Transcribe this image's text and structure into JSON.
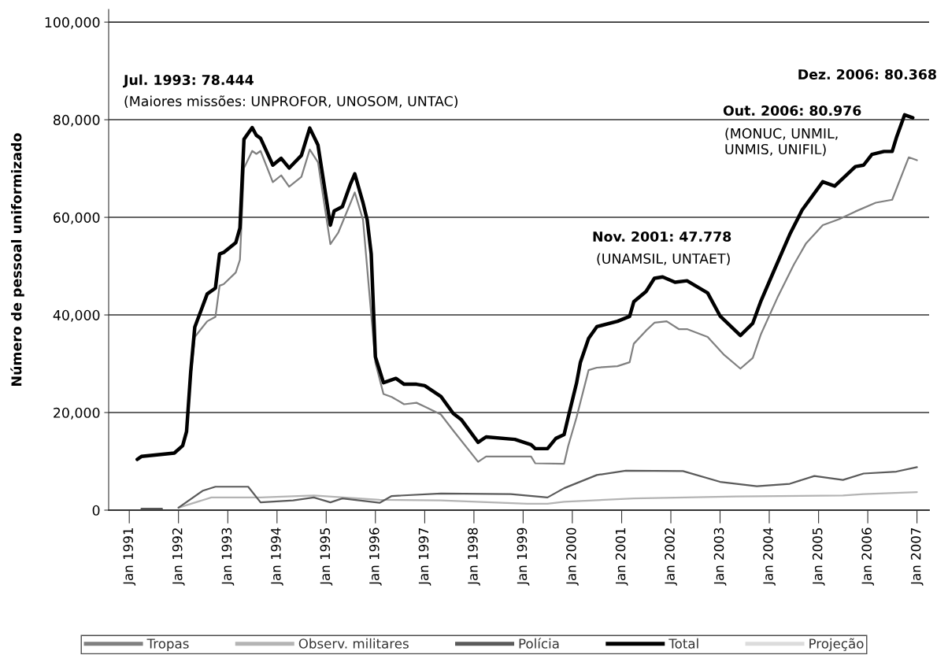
{
  "chart_data": {
    "type": "line",
    "ylabel": "Número de pessoal uniformizado",
    "xlim": [
      "1990-08",
      "2007-04"
    ],
    "ylim": [
      0,
      102600
    ],
    "xticks": [
      {
        "value": "1991-01",
        "label": "Jan 1991"
      },
      {
        "value": "1992-01",
        "label": "Jan 1992"
      },
      {
        "value": "1993-01",
        "label": "Jan 1993"
      },
      {
        "value": "1994-01",
        "label": "Jan 1994"
      },
      {
        "value": "1995-01",
        "label": "Jan 1995"
      },
      {
        "value": "1996-01",
        "label": "Jan 1996"
      },
      {
        "value": "1997-01",
        "label": "Jan 1997"
      },
      {
        "value": "1998-01",
        "label": "Jan 1998"
      },
      {
        "value": "1999-01",
        "label": "Jan 1999"
      },
      {
        "value": "2000-01",
        "label": "Jan 2000"
      },
      {
        "value": "2001-01",
        "label": "Jan 2001"
      },
      {
        "value": "2002-01",
        "label": "Jan 2002"
      },
      {
        "value": "2003-01",
        "label": "Jan 2003"
      },
      {
        "value": "2004-01",
        "label": "Jan 2004"
      },
      {
        "value": "2005-01",
        "label": "Jan 2005"
      },
      {
        "value": "2006-01",
        "label": "Jan 2006"
      },
      {
        "value": "2007-01",
        "label": "Jan 2007"
      }
    ],
    "yticks": [
      0,
      {
        "value": 20000,
        "label": "20,000"
      },
      {
        "value": 40000,
        "label": "40,000"
      },
      {
        "value": 60000,
        "label": "60,000"
      },
      {
        "value": 80000,
        "label": "80,000"
      },
      {
        "value": 100000,
        "label": "100,000"
      }
    ],
    "grid": "y",
    "legend": "bottom",
    "marker": "none",
    "line_style": "solid",
    "series": [
      {
        "name": "Tropas",
        "color": "#808080",
        "x": [
          "1992-04",
          "1992-05",
          "1992-08",
          "1992-10",
          "1992-11",
          "1992-12",
          "1993-03",
          "1993-04",
          "1993-05",
          "1993-07",
          "1993-08",
          "1993-09",
          "1993-12",
          "1994-02",
          "1994-04",
          "1994-07",
          "1994-09",
          "1994-11",
          "1995-02",
          "1995-04",
          "1995-07",
          "1995-08",
          "1995-10",
          "1996-01",
          "1996-03",
          "1996-05",
          "1996-08",
          "1996-11",
          "1997-01",
          "1997-05",
          "1997-08",
          "1998-02",
          "1998-04",
          "1999-03",
          "1999-04",
          "1999-11",
          "1999-12",
          "2000-02",
          "2000-05",
          "2000-07",
          "2000-12",
          "2001-03",
          "2001-04",
          "2001-07",
          "2001-09",
          "2001-12",
          "2002-03",
          "2002-05",
          "2002-10",
          "2003-02",
          "2003-06",
          "2003-09",
          "2003-11",
          "2004-03",
          "2004-07",
          "2004-10",
          "2005-02",
          "2005-06",
          "2005-10",
          "2006-03",
          "2006-07",
          "2006-10",
          "2006-11",
          "2007-01"
        ],
        "values": [
          27300,
          35500,
          38700,
          39600,
          46000,
          46300,
          48700,
          51300,
          70100,
          73600,
          73000,
          73600,
          67200,
          68600,
          66300,
          68300,
          73900,
          71300,
          54500,
          56900,
          63000,
          65100,
          59500,
          30200,
          23800,
          23200,
          21700,
          22000,
          21200,
          19600,
          16300,
          9900,
          11000,
          11000,
          9600,
          9500,
          13100,
          19000,
          28700,
          29200,
          29500,
          30300,
          34100,
          36800,
          38400,
          38700,
          37100,
          37100,
          35500,
          31800,
          29000,
          31200,
          36100,
          43500,
          50300,
          54700,
          58400,
          59600,
          61200,
          63000,
          63600,
          70100,
          72300,
          71700
        ]
      },
      {
        "name": "Observ. militares",
        "color": "#b4b4b4",
        "x": [
          "1992-01",
          "1992-09",
          "1993-09",
          "1994-10",
          "1996-02",
          "1997-05",
          "1999-02",
          "1999-07",
          "1999-11",
          "2001-04",
          "2003-05",
          "2005-07",
          "2005-12",
          "2007-01"
        ],
        "values": [
          500,
          2600,
          2600,
          3000,
          2100,
          2000,
          1300,
          1300,
          1700,
          2400,
          2800,
          3000,
          3300,
          3700
        ]
      },
      {
        "name": "Polícia",
        "color": "#5a5a5a",
        "x": [
          "1991-04",
          "1991-09",
          "1991-11",
          "1992-01",
          "1992-07",
          "1992-10",
          "1993-06",
          "1993-09",
          "1994-05",
          "1994-10",
          "1995-02",
          "1995-05",
          "1996-02",
          "1996-05",
          "1997-05",
          "1998-10",
          "1999-07",
          "1999-11",
          "2000-07",
          "2001-02",
          "2002-04",
          "2003-01",
          "2003-10",
          "2004-06",
          "2004-12",
          "2005-07",
          "2005-12",
          "2006-08",
          "2007-01"
        ],
        "values": [
          300,
          300,
          null,
          500,
          4000,
          4800,
          4800,
          1600,
          2000,
          2600,
          1600,
          2400,
          1500,
          2900,
          3400,
          3300,
          2600,
          4500,
          7200,
          8100,
          8000,
          5800,
          4900,
          5400,
          7000,
          6200,
          7500,
          7900,
          8800
        ]
      },
      {
        "name": "Total",
        "color": "#000000",
        "x": [
          "1991-03",
          "1991-04",
          "1991-12",
          "1992-02",
          "1992-03",
          "1992-04",
          "1992-05",
          "1992-08",
          "1992-10",
          "1992-11",
          "1992-12",
          "1993-03",
          "1993-04",
          "1993-05",
          "1993-07",
          "1993-08",
          "1993-09",
          "1993-12",
          "1994-02",
          "1994-04",
          "1994-07",
          "1994-09",
          "1994-11",
          "1995-02",
          "1995-03",
          "1995-05",
          "1995-07",
          "1995-08",
          "1995-10",
          "1995-11",
          "1995-12",
          "1996-01",
          "1996-03",
          "1996-06",
          "1996-08",
          "1996-11",
          "1997-01",
          "1997-05",
          "1997-08",
          "1997-10",
          "1998-02",
          "1998-04",
          "1998-11",
          "1999-03",
          "1999-04",
          "1999-07",
          "1999-09",
          "1999-11",
          "1999-12",
          "2000-02",
          "2000-03",
          "2000-05",
          "2000-07",
          "2000-12",
          "2001-03",
          "2001-04",
          "2001-07",
          "2001-09",
          "2001-11",
          "2002-02",
          "2002-05",
          "2002-10",
          "2003-01",
          "2003-06",
          "2003-09",
          "2003-11",
          "2004-02",
          "2004-06",
          "2004-09",
          "2005-02",
          "2005-05",
          "2005-10",
          "2005-12",
          "2006-02",
          "2006-05",
          "2006-07",
          "2006-08",
          "2006-10",
          "2006-12"
        ],
        "values": [
          10400,
          11000,
          11700,
          13200,
          16100,
          28400,
          37500,
          44300,
          45500,
          52500,
          52800,
          54800,
          57800,
          76000,
          78400,
          76800,
          76200,
          70700,
          72100,
          70100,
          72700,
          78300,
          74800,
          58400,
          61300,
          62200,
          66900,
          68900,
          63000,
          59500,
          52500,
          31400,
          26100,
          27000,
          25800,
          25800,
          25500,
          23300,
          19800,
          18500,
          13900,
          15000,
          14500,
          13400,
          12600,
          12600,
          14700,
          15500,
          19000,
          26000,
          30300,
          35200,
          37600,
          38700,
          39700,
          42700,
          44800,
          47500,
          47800,
          46700,
          47000,
          44500,
          39800,
          35800,
          38300,
          42900,
          48800,
          56500,
          61500,
          67300,
          66400,
          70400,
          70700,
          72900,
          73500,
          73500,
          76300,
          81000,
          80400
        ]
      },
      {
        "name": "Projeção",
        "color": "#dcdcdc"
      }
    ],
    "annotations": [
      "Jul. 1993: 78.444",
      "(Maiores missões: UNPROFOR, UNOSOM, UNTAC)",
      "Nov. 2001: 47.778",
      "(UNAMSIL, UNTAET)",
      "Out. 2006: 80.976",
      "(MONUC, UNMIL,\nUNMIS, UNIFIL)",
      "Dez. 2006: 80.368"
    ]
  }
}
